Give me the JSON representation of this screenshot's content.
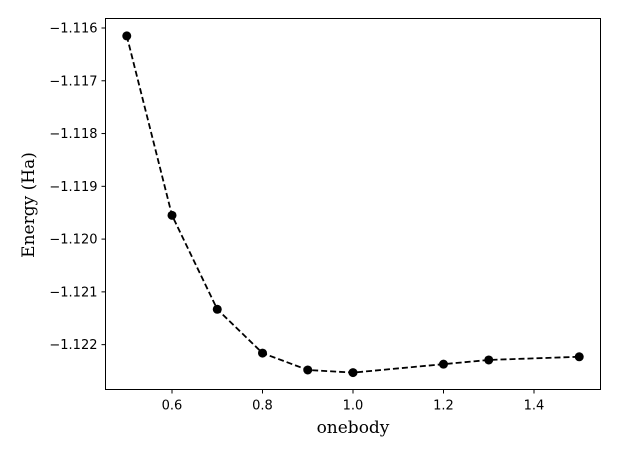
{
  "chart_data": {
    "type": "line",
    "title": "",
    "xlabel": "onebody",
    "ylabel": "Energy (Ha)",
    "xlim": [
      0.453,
      1.547
    ],
    "ylim": [
      -1.12285,
      -1.11582
    ],
    "x_ticks": [
      0.6,
      0.8,
      1.0,
      1.2,
      1.4
    ],
    "x_tick_labels": [
      "0.6",
      "0.8",
      "1.0",
      "1.2",
      "1.4"
    ],
    "y_ticks": [
      -1.116,
      -1.117,
      -1.118,
      -1.119,
      -1.12,
      -1.121,
      -1.122
    ],
    "y_tick_labels": [
      "−1.116",
      "−1.117",
      "−1.118",
      "−1.119",
      "−1.120",
      "−1.121",
      "−1.122"
    ],
    "grid": false,
    "legend": "none",
    "line_style": "dashed",
    "marker": "circle",
    "color": "#000000",
    "series": [
      {
        "x": [
          0.5,
          0.6,
          0.7,
          0.8,
          0.9,
          1.0,
          1.2,
          1.3,
          1.5
        ],
        "values": [
          -1.11615,
          -1.11955,
          -1.12133,
          -1.12216,
          -1.12248,
          -1.12253,
          -1.12237,
          -1.12229,
          -1.12223
        ]
      }
    ]
  }
}
